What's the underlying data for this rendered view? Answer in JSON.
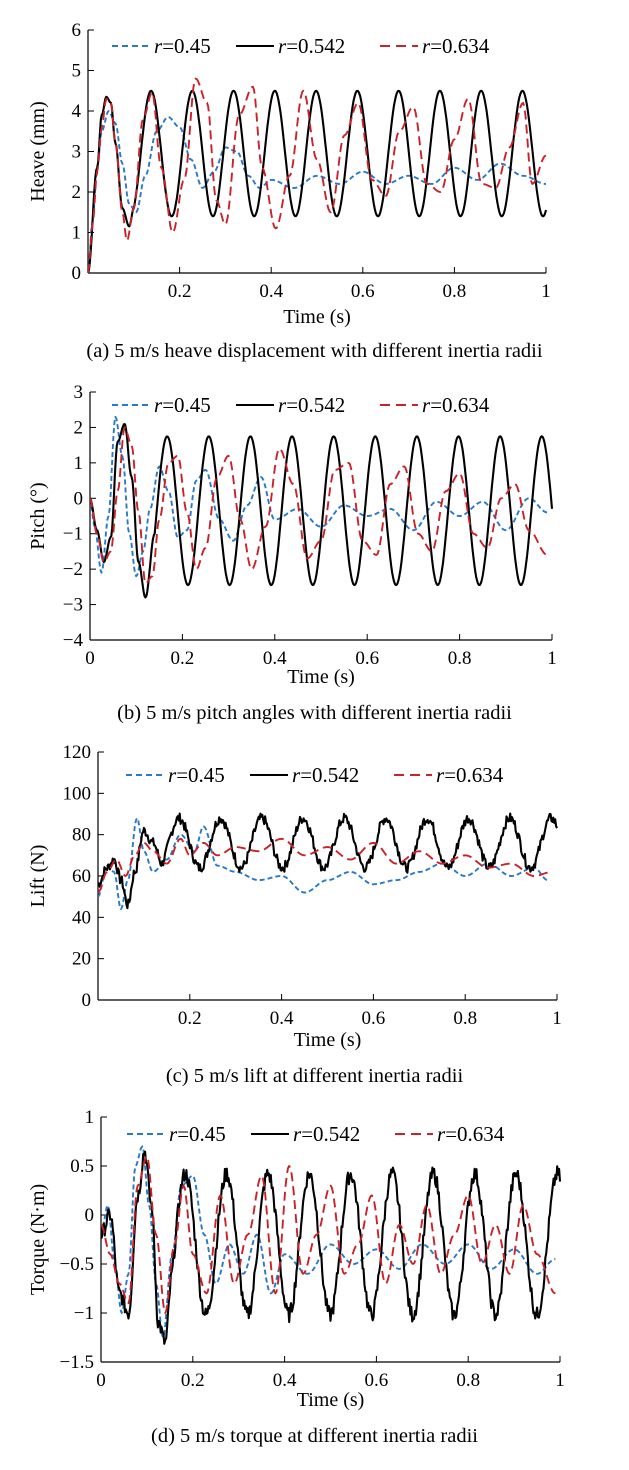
{
  "figure": {
    "legend": {
      "prefix": "r",
      "entries": [
        "=0.45",
        "=0.542",
        "=0.634"
      ],
      "styles": [
        "dashed",
        "solid",
        "dashed"
      ]
    },
    "series_colors": [
      "#2a78c8",
      "#000000",
      "#c8232b"
    ],
    "caption_font": "serif"
  },
  "chart_data": [
    {
      "id": "a",
      "type": "line",
      "caption": "(a) 5 m/s heave displacement with different inertia radii",
      "xlabel": "Time (s)",
      "ylabel": "Heave (mm)",
      "xlim": [
        0,
        1
      ],
      "ylim": [
        0,
        6
      ],
      "xticks": [
        0.2,
        0.4,
        0.6,
        0.8,
        1
      ],
      "xtick_labels": [
        "0.2",
        "0.4",
        "0.6",
        "0.8",
        "1"
      ],
      "yticks": [
        0,
        1,
        2,
        3,
        4,
        5,
        6
      ],
      "ytick_labels": [
        "0",
        "1",
        "2",
        "3",
        "4",
        "5",
        "6"
      ],
      "series": [
        {
          "name": "r=0.45",
          "t": [
            0,
            0.01,
            0.02,
            0.03,
            0.045,
            0.06,
            0.075,
            0.09,
            0.105,
            0.125,
            0.15,
            0.175,
            0.2,
            0.225,
            0.25,
            0.275,
            0.3,
            0.325,
            0.35,
            0.375,
            0.4,
            0.45,
            0.5,
            0.55,
            0.6,
            0.65,
            0.7,
            0.75,
            0.8,
            0.85,
            0.9,
            0.95,
            1.0
          ],
          "y": [
            0,
            1.3,
            2.6,
            3.5,
            4.0,
            3.7,
            2.7,
            1.7,
            1.5,
            2.4,
            3.5,
            3.85,
            3.6,
            2.8,
            2.1,
            2.5,
            3.1,
            3.0,
            2.4,
            2.1,
            2.3,
            2.1,
            2.4,
            2.2,
            2.5,
            2.2,
            2.4,
            2.2,
            2.6,
            2.3,
            2.7,
            2.4,
            2.2
          ]
        },
        {
          "name": "r=0.542",
          "f": 11.1,
          "base": 2.95,
          "amp": 1.55,
          "ramp": [
            [
              0,
              0
            ],
            [
              0.02,
              2.6
            ],
            [
              0.03,
              3.9
            ],
            [
              0.04,
              4.35
            ],
            [
              0.05,
              4.2
            ],
            [
              0.06,
              3.2
            ],
            [
              0.075,
              1.6
            ],
            [
              0.09,
              1.15
            ],
            [
              0.1,
              1.6
            ]
          ]
        },
        {
          "name": "r=0.634",
          "t": [
            0,
            0.01,
            0.02,
            0.03,
            0.04,
            0.05,
            0.06,
            0.075,
            0.085,
            0.1,
            0.12,
            0.14,
            0.16,
            0.185,
            0.21,
            0.235,
            0.26,
            0.28,
            0.3,
            0.33,
            0.36,
            0.38,
            0.41,
            0.44,
            0.47,
            0.5,
            0.53,
            0.56,
            0.59,
            0.62,
            0.65,
            0.68,
            0.71,
            0.74,
            0.77,
            0.8,
            0.83,
            0.86,
            0.89,
            0.92,
            0.95,
            0.97,
            1.0
          ],
          "y": [
            0,
            1.2,
            2.5,
            3.6,
            4.3,
            4.2,
            3.2,
            1.5,
            0.8,
            1.6,
            3.8,
            4.45,
            2.6,
            1.0,
            2.3,
            4.8,
            4.2,
            1.8,
            1.2,
            3.9,
            4.6,
            2.6,
            1.1,
            2.4,
            4.5,
            2.8,
            1.5,
            3.4,
            4.2,
            2.3,
            1.9,
            3.5,
            4.1,
            2.2,
            2.0,
            3.3,
            4.3,
            2.2,
            2.1,
            3.1,
            4.2,
            2.2,
            2.9
          ]
        }
      ]
    },
    {
      "id": "b",
      "type": "line",
      "caption": "(b) 5 m/s pitch angles with different inertia radii",
      "xlabel": "Time (s)",
      "ylabel": "Pitch (°)",
      "xlim": [
        0,
        1
      ],
      "ylim": [
        -4,
        3
      ],
      "xticks": [
        0,
        0.2,
        0.4,
        0.6,
        0.8,
        1
      ],
      "xtick_labels": [
        "0",
        "0.2",
        "0.4",
        "0.6",
        "0.8",
        "1"
      ],
      "yticks": [
        -4,
        -3,
        -2,
        -1,
        0,
        1,
        2,
        3
      ],
      "ytick_labels": [
        "−4",
        "−3",
        "−2",
        "−1",
        "0",
        "1",
        "2",
        "3"
      ],
      "series": [
        {
          "name": "r=0.45",
          "t": [
            0,
            0.01,
            0.025,
            0.04,
            0.055,
            0.07,
            0.085,
            0.1,
            0.115,
            0.13,
            0.15,
            0.17,
            0.19,
            0.21,
            0.23,
            0.25,
            0.28,
            0.31,
            0.34,
            0.37,
            0.4,
            0.45,
            0.5,
            0.55,
            0.6,
            0.65,
            0.7,
            0.75,
            0.8,
            0.85,
            0.9,
            0.95,
            0.99
          ],
          "y": [
            0,
            -0.8,
            -2.1,
            -0.5,
            2.3,
            1.2,
            -1.0,
            -2.2,
            -1.5,
            -0.3,
            0.9,
            0.2,
            -1.1,
            -0.9,
            0.5,
            0.8,
            -0.6,
            -1.2,
            -0.2,
            0.6,
            -0.6,
            -0.3,
            -0.8,
            -0.2,
            -0.5,
            -0.3,
            -0.9,
            -0.1,
            -0.5,
            -0.1,
            -0.9,
            0.0,
            -0.4
          ]
        },
        {
          "name": "r=0.542",
          "f": 11.1,
          "base": -0.35,
          "amp": 2.1,
          "ramp": [
            [
              0,
              0
            ],
            [
              0.015,
              -0.9
            ],
            [
              0.03,
              -1.8
            ],
            [
              0.045,
              -1.1
            ],
            [
              0.06,
              1.6
            ],
            [
              0.075,
              2.1
            ],
            [
              0.09,
              0.6
            ],
            [
              0.105,
              -1.8
            ],
            [
              0.12,
              -2.8
            ],
            [
              0.14,
              -1.0
            ]
          ]
        },
        {
          "name": "r=0.634",
          "t": [
            0,
            0.015,
            0.03,
            0.045,
            0.06,
            0.075,
            0.09,
            0.105,
            0.12,
            0.135,
            0.15,
            0.17,
            0.19,
            0.21,
            0.23,
            0.25,
            0.275,
            0.3,
            0.325,
            0.35,
            0.38,
            0.41,
            0.44,
            0.47,
            0.5,
            0.53,
            0.56,
            0.59,
            0.62,
            0.65,
            0.68,
            0.71,
            0.74,
            0.77,
            0.8,
            0.83,
            0.86,
            0.89,
            0.92,
            0.95,
            0.99
          ],
          "y": [
            0,
            -1.0,
            -1.8,
            -1.5,
            0.2,
            2.0,
            1.5,
            -0.4,
            -2.4,
            -2.2,
            -0.6,
            1.0,
            1.2,
            -0.4,
            -2.0,
            -1.4,
            0.6,
            1.2,
            -0.6,
            -2.0,
            -0.8,
            1.4,
            0.4,
            -1.7,
            -1.2,
            0.8,
            1.0,
            -1.2,
            -1.6,
            0.4,
            0.9,
            -1.0,
            -1.5,
            0.2,
            0.7,
            -1.0,
            -1.4,
            0.0,
            0.4,
            -0.9,
            -1.6
          ]
        }
      ]
    },
    {
      "id": "c",
      "type": "line",
      "caption": "(c) 5 m/s lift at different inertia radii",
      "xlabel": "Time (s)",
      "ylabel": "Lift (N)",
      "xlim": [
        0,
        1
      ],
      "ylim": [
        0,
        120
      ],
      "xticks": [
        0.2,
        0.4,
        0.6,
        0.8,
        1
      ],
      "xtick_labels": [
        "0.2",
        "0.4",
        "0.6",
        "0.8",
        "1"
      ],
      "yticks": [
        0,
        20,
        40,
        60,
        80,
        100,
        120
      ],
      "ytick_labels": [
        "0",
        "20",
        "40",
        "60",
        "80",
        "100",
        "120"
      ],
      "series": [
        {
          "name": "r=0.45",
          "t": [
            0,
            0.02,
            0.035,
            0.05,
            0.065,
            0.085,
            0.1,
            0.12,
            0.15,
            0.18,
            0.21,
            0.23,
            0.26,
            0.3,
            0.35,
            0.4,
            0.45,
            0.5,
            0.55,
            0.6,
            0.65,
            0.7,
            0.75,
            0.8,
            0.85,
            0.9,
            0.95,
            0.98
          ],
          "y": [
            50,
            65,
            62,
            44,
            58,
            88,
            72,
            62,
            68,
            80,
            72,
            84,
            65,
            62,
            58,
            60,
            52,
            58,
            62,
            56,
            58,
            62,
            66,
            60,
            66,
            60,
            64,
            58
          ]
        },
        {
          "name": "r=0.542",
          "f": 11.1,
          "base": 76,
          "amp": 12,
          "noise": 2.5,
          "ramp": [
            [
              0,
              56
            ],
            [
              0.02,
              64
            ],
            [
              0.035,
              68
            ],
            [
              0.05,
              58
            ],
            [
              0.065,
              46
            ],
            [
              0.08,
              62
            ],
            [
              0.1,
              82
            ],
            [
              0.12,
              76
            ],
            [
              0.14,
              66
            ]
          ]
        },
        {
          "name": "r=0.634",
          "t": [
            0,
            0.02,
            0.04,
            0.06,
            0.08,
            0.1,
            0.12,
            0.15,
            0.18,
            0.2,
            0.23,
            0.26,
            0.3,
            0.35,
            0.4,
            0.45,
            0.5,
            0.55,
            0.6,
            0.65,
            0.7,
            0.75,
            0.8,
            0.85,
            0.9,
            0.95,
            0.99
          ],
          "y": [
            52,
            62,
            68,
            60,
            70,
            76,
            72,
            66,
            78,
            70,
            76,
            70,
            74,
            72,
            78,
            70,
            74,
            68,
            76,
            66,
            72,
            66,
            70,
            64,
            66,
            60,
            62
          ]
        }
      ]
    },
    {
      "id": "d",
      "type": "line",
      "caption": "(d) 5 m/s torque at different inertia radii",
      "xlabel": "Time (s)",
      "ylabel": "Torque (N·m)",
      "xlim": [
        0,
        1
      ],
      "ylim": [
        -1.5,
        1
      ],
      "xticks": [
        0,
        0.2,
        0.4,
        0.6,
        0.8,
        1
      ],
      "xtick_labels": [
        "0",
        "0.2",
        "0.4",
        "0.6",
        "0.8",
        "1"
      ],
      "yticks": [
        -1.5,
        -1,
        -0.5,
        0,
        0.5,
        1
      ],
      "ytick_labels": [
        "−1.5",
        "−1",
        "−0.5",
        "0",
        "0.5",
        "1"
      ],
      "series": [
        {
          "name": "r=0.45",
          "t": [
            0,
            0.015,
            0.03,
            0.045,
            0.06,
            0.075,
            0.09,
            0.105,
            0.12,
            0.135,
            0.155,
            0.175,
            0.2,
            0.225,
            0.25,
            0.28,
            0.31,
            0.34,
            0.37,
            0.4,
            0.45,
            0.5,
            0.55,
            0.6,
            0.65,
            0.7,
            0.75,
            0.8,
            0.85,
            0.9,
            0.95,
            0.99
          ],
          "y": [
            -0.2,
            0.1,
            -0.5,
            -1.0,
            -0.6,
            0.5,
            0.7,
            0.1,
            -0.7,
            -1.25,
            -0.4,
            0.3,
            0.4,
            -0.2,
            -0.7,
            -0.3,
            -0.6,
            -0.2,
            -0.8,
            -0.4,
            -0.6,
            -0.3,
            -0.5,
            -0.35,
            -0.55,
            -0.3,
            -0.5,
            -0.3,
            -0.55,
            -0.35,
            -0.6,
            -0.45
          ]
        },
        {
          "name": "r=0.542",
          "f": 11.1,
          "base": -0.3,
          "amp": 0.72,
          "noise": 0.08,
          "ramp": [
            [
              0,
              -0.2
            ],
            [
              0.02,
              0.0
            ],
            [
              0.04,
              -0.8
            ],
            [
              0.06,
              -1.0
            ],
            [
              0.08,
              0.2
            ],
            [
              0.095,
              0.65
            ],
            [
              0.11,
              0.1
            ],
            [
              0.125,
              -1.1
            ],
            [
              0.14,
              -1.3
            ],
            [
              0.155,
              -0.6
            ]
          ]
        },
        {
          "name": "r=0.634",
          "t": [
            0,
            0.02,
            0.04,
            0.06,
            0.08,
            0.1,
            0.12,
            0.14,
            0.16,
            0.18,
            0.2,
            0.23,
            0.26,
            0.29,
            0.32,
            0.35,
            0.38,
            0.41,
            0.44,
            0.47,
            0.5,
            0.53,
            0.56,
            0.59,
            0.62,
            0.65,
            0.68,
            0.71,
            0.74,
            0.77,
            0.8,
            0.83,
            0.86,
            0.89,
            0.92,
            0.95,
            0.99
          ],
          "y": [
            -0.1,
            -0.4,
            -0.7,
            -0.9,
            0.3,
            0.6,
            -0.2,
            -1.0,
            -0.3,
            0.3,
            -0.4,
            -0.8,
            0.2,
            -0.7,
            -0.2,
            0.4,
            -0.8,
            0.5,
            -0.6,
            -0.2,
            0.3,
            -0.6,
            -0.3,
            0.2,
            -0.7,
            -0.1,
            -0.5,
            0.1,
            -0.6,
            -0.2,
            0.2,
            -0.5,
            -0.1,
            -0.6,
            0.1,
            -0.4,
            -0.8
          ]
        }
      ]
    }
  ]
}
